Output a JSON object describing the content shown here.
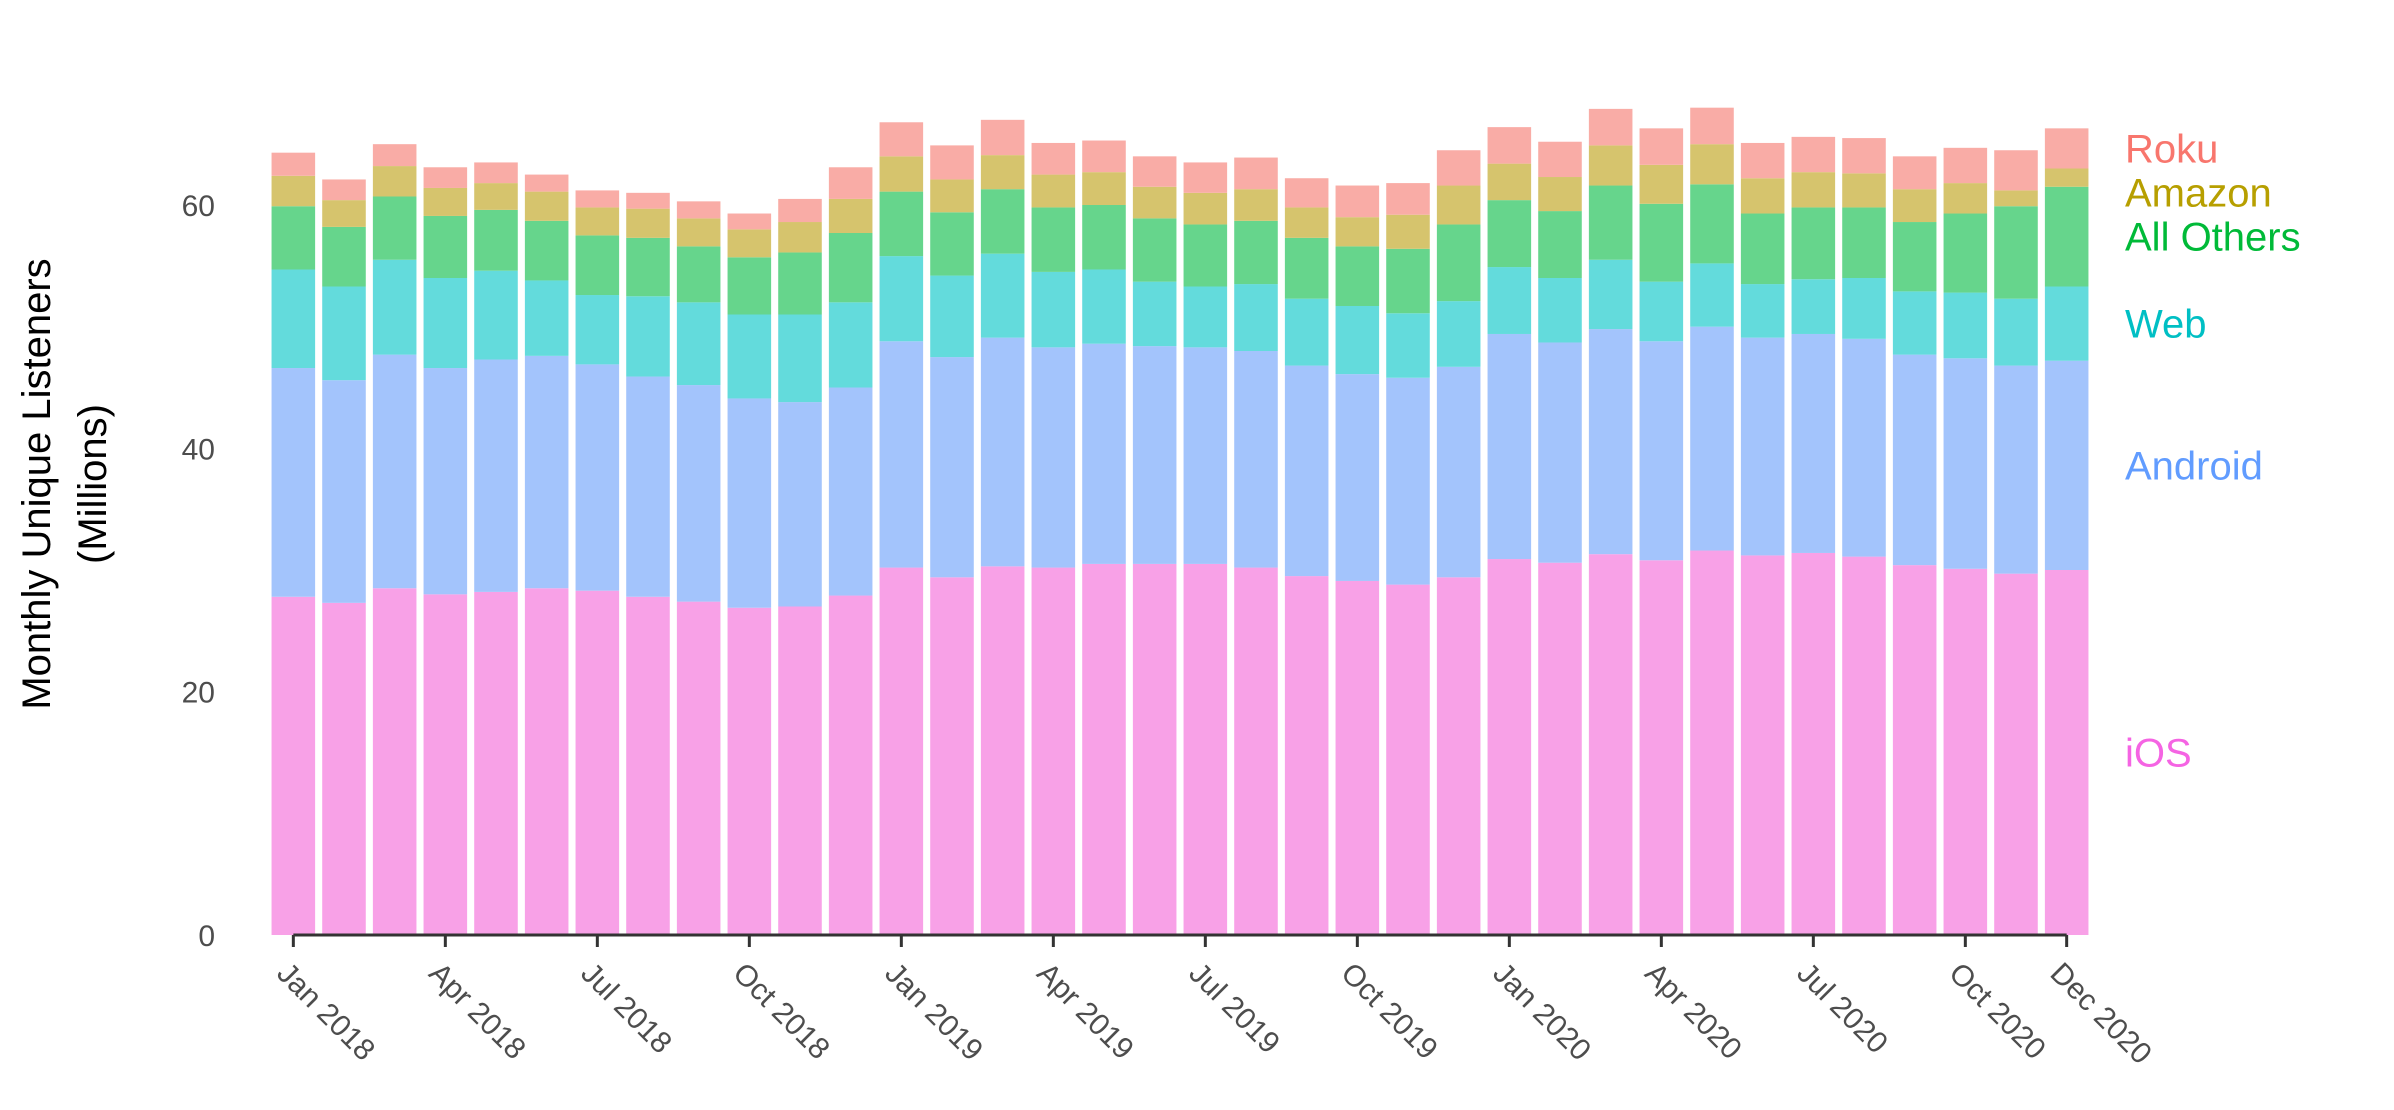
{
  "chart_data": {
    "type": "bar",
    "stacked": true,
    "ylabel_line1": "Monthly Unique Listeners",
    "ylabel_line2": "(Millions)",
    "ylim": [
      0,
      72
    ],
    "yticks": [
      0,
      20,
      40,
      60
    ],
    "grid": false,
    "legend_placement": "right (direct labels)",
    "months": [
      "2018-01",
      "2018-02",
      "2018-03",
      "2018-04",
      "2018-05",
      "2018-06",
      "2018-07",
      "2018-08",
      "2018-09",
      "2018-10",
      "2018-11",
      "2018-12",
      "2019-01",
      "2019-02",
      "2019-03",
      "2019-04",
      "2019-05",
      "2019-06",
      "2019-07",
      "2019-08",
      "2019-09",
      "2019-10",
      "2019-11",
      "2019-12",
      "2020-01",
      "2020-02",
      "2020-03",
      "2020-04",
      "2020-05",
      "2020-06",
      "2020-07",
      "2020-08",
      "2020-09",
      "2020-10",
      "2020-11",
      "2020-12"
    ],
    "x_tick_labels": [
      {
        "label": "Jan 2018",
        "month": "2018-01"
      },
      {
        "label": "Apr 2018",
        "month": "2018-04"
      },
      {
        "label": "Jul 2018",
        "month": "2018-07"
      },
      {
        "label": "Oct 2018",
        "month": "2018-10"
      },
      {
        "label": "Jan 2019",
        "month": "2019-01"
      },
      {
        "label": "Apr 2019",
        "month": "2019-04"
      },
      {
        "label": "Jul 2019",
        "month": "2019-07"
      },
      {
        "label": "Oct 2019",
        "month": "2019-10"
      },
      {
        "label": "Jan 2020",
        "month": "2020-01"
      },
      {
        "label": "Apr 2020",
        "month": "2020-04"
      },
      {
        "label": "Jul 2020",
        "month": "2020-07"
      },
      {
        "label": "Oct 2020",
        "month": "2020-10"
      },
      {
        "label": "Dec 2020",
        "month": "2020-12"
      }
    ],
    "series": [
      {
        "name": "iOS",
        "color": "#f8a1e7",
        "label_color": "#f564e3",
        "values": [
          27.8,
          27.3,
          28.5,
          28.0,
          28.2,
          28.5,
          28.3,
          27.8,
          27.4,
          26.9,
          27.0,
          27.9,
          30.2,
          29.4,
          30.3,
          30.2,
          30.5,
          30.5,
          30.5,
          30.2,
          29.5,
          29.1,
          28.8,
          29.4,
          30.9,
          30.6,
          31.3,
          30.8,
          31.6,
          31.2,
          31.4,
          31.1,
          30.4,
          30.1,
          29.7,
          30.0
        ]
      },
      {
        "name": "Android",
        "color": "#a3c4fc",
        "label_color": "#619cff",
        "values": [
          18.8,
          18.3,
          19.2,
          18.6,
          19.1,
          19.1,
          18.6,
          18.1,
          17.8,
          17.2,
          16.8,
          17.1,
          18.6,
          18.1,
          18.8,
          18.1,
          18.1,
          17.9,
          17.8,
          17.8,
          17.3,
          17.0,
          17.0,
          17.3,
          18.5,
          18.1,
          18.5,
          18.0,
          18.4,
          17.9,
          18.0,
          17.9,
          17.3,
          17.3,
          17.1,
          17.2
        ]
      },
      {
        "name": "Web",
        "color": "#63dbdc",
        "label_color": "#00bfc4",
        "values": [
          8.1,
          7.7,
          7.8,
          7.4,
          7.3,
          6.2,
          5.7,
          6.6,
          6.8,
          6.9,
          7.2,
          7.0,
          7.0,
          6.7,
          6.9,
          6.2,
          6.1,
          5.3,
          5.0,
          5.5,
          5.5,
          5.6,
          5.3,
          5.4,
          5.5,
          5.3,
          5.7,
          4.9,
          5.2,
          4.4,
          4.5,
          5.0,
          5.2,
          5.4,
          5.5,
          6.1
        ]
      },
      {
        "name": "All Others",
        "color": "#66d58c",
        "label_color": "#00ba38",
        "values": [
          5.2,
          4.9,
          5.2,
          5.1,
          5.0,
          4.9,
          4.9,
          4.8,
          4.6,
          4.7,
          5.1,
          5.7,
          5.3,
          5.2,
          5.3,
          5.3,
          5.3,
          5.2,
          5.1,
          5.2,
          5.0,
          4.9,
          5.3,
          6.3,
          5.5,
          5.5,
          6.1,
          6.4,
          6.5,
          5.8,
          5.9,
          5.8,
          5.7,
          6.5,
          7.6,
          8.2
        ]
      },
      {
        "name": "Amazon",
        "color": "#d6c46d",
        "label_color": "#b79f00",
        "values": [
          2.5,
          2.2,
          2.5,
          2.3,
          2.2,
          2.4,
          2.3,
          2.4,
          2.3,
          2.3,
          2.5,
          2.8,
          2.9,
          2.7,
          2.8,
          2.7,
          2.7,
          2.6,
          2.6,
          2.6,
          2.5,
          2.4,
          2.8,
          3.2,
          3.0,
          2.8,
          3.3,
          3.2,
          3.3,
          2.9,
          2.9,
          2.8,
          2.7,
          2.5,
          1.3,
          1.5
        ]
      },
      {
        "name": "Roku",
        "color": "#f9aca6",
        "label_color": "#f8766d",
        "values": [
          1.9,
          1.7,
          1.8,
          1.7,
          1.7,
          1.4,
          1.4,
          1.3,
          1.4,
          1.3,
          1.9,
          2.6,
          2.8,
          2.8,
          2.9,
          2.6,
          2.6,
          2.5,
          2.5,
          2.6,
          2.4,
          2.6,
          2.6,
          2.9,
          3.0,
          2.9,
          3.0,
          3.0,
          3.0,
          2.9,
          2.9,
          2.9,
          2.7,
          2.9,
          3.3,
          3.3
        ]
      }
    ],
    "legend_order": [
      "Roku",
      "Amazon",
      "All Others",
      "Web",
      "Android",
      "iOS"
    ]
  }
}
